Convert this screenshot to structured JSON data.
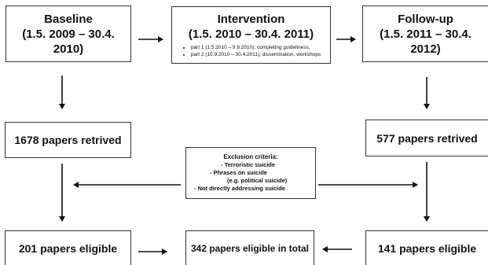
{
  "baseline": {
    "title": "Baseline",
    "period": "(1.5. 2009 – 30.4. 2010)"
  },
  "intervention": {
    "title": "Intervention",
    "period": "(1.5. 2010 – 30.4. 2011)",
    "parts": [
      "part 1 (1.5.2010 – 9.9.2010); completing guideliness,",
      "part 2 (10.9.2010 – 30.4.2011); dissemination, workshops"
    ]
  },
  "followup": {
    "title": "Follow-up",
    "period": "(1.5. 2011 – 30.4. 2012)"
  },
  "retrieved_left": "1678 papers retrived",
  "retrieved_right": "577 papers retrived",
  "exclusion": {
    "heading": "Exclusion criteria:",
    "items": [
      "-    Terroristic suicide",
      "-    Phrases on suicide",
      "(e.g. political suicide)",
      "-    Not directly addressing suicide"
    ]
  },
  "eligible_left": "201 papers eligible",
  "eligible_total": "342 papers eligible in total",
  "eligible_right": "141 papers eligible"
}
